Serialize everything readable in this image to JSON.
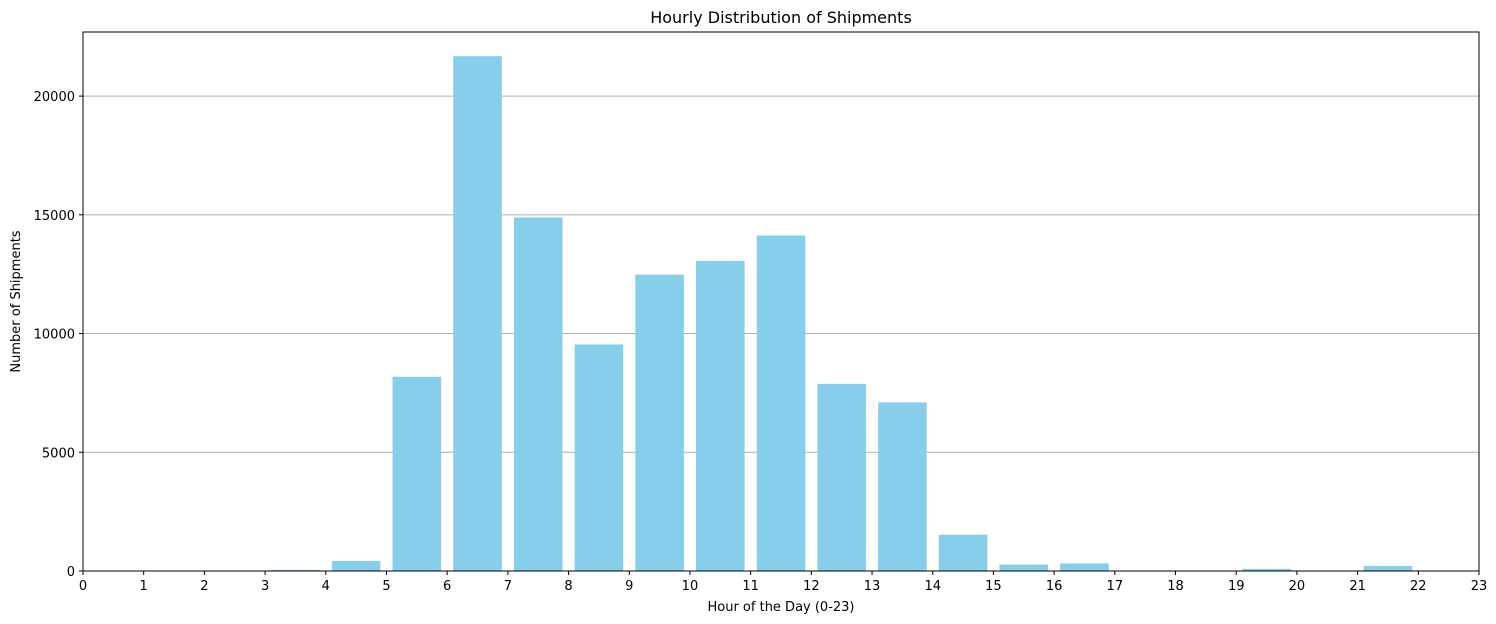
{
  "chart_data": {
    "type": "bar",
    "title": "Hourly Distribution of Shipments",
    "xlabel": "Hour of the Day (0-23)",
    "ylabel": "Number of Shipments",
    "categories": [
      0,
      1,
      2,
      3,
      4,
      5,
      6,
      7,
      8,
      9,
      10,
      11,
      12,
      13,
      14,
      15,
      16,
      17,
      18,
      19,
      20,
      21,
      22
    ],
    "values": [
      0,
      5,
      10,
      50,
      420,
      8180,
      21680,
      14890,
      9540,
      12480,
      13060,
      14130,
      7880,
      7100,
      1530,
      270,
      320,
      0,
      0,
      90,
      0,
      210,
      0
    ],
    "x_ticks": [
      "0",
      "1",
      "2",
      "3",
      "4",
      "5",
      "6",
      "7",
      "8",
      "9",
      "10",
      "11",
      "12",
      "13",
      "14",
      "15",
      "16",
      "17",
      "18",
      "19",
      "20",
      "21",
      "22",
      "23"
    ],
    "y_ticks": [
      "0",
      "5000",
      "10000",
      "15000",
      "20000"
    ],
    "xlim": [
      0,
      23
    ],
    "ylim": [
      0,
      22700
    ],
    "grid": "y-axis only",
    "bar_color": "#87CEEB"
  }
}
